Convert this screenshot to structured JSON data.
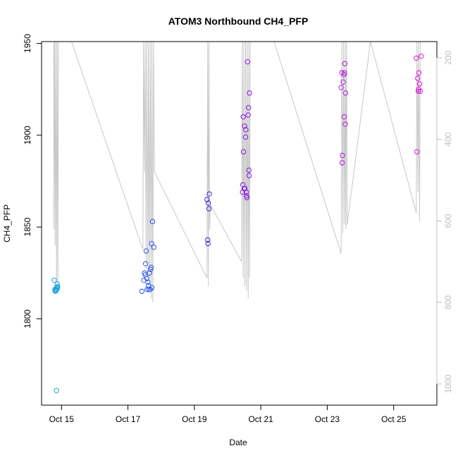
{
  "chart_data": {
    "type": "scatter",
    "title": "ATOM3 Northbound CH4_PFP",
    "xlabel": "Date",
    "ylabel": "CH4_PFP",
    "x_ticks": [
      {
        "day": 15,
        "label": "Oct 15"
      },
      {
        "day": 17,
        "label": "Oct 17"
      },
      {
        "day": 19,
        "label": "Oct 19"
      },
      {
        "day": 21,
        "label": "Oct 21"
      },
      {
        "day": 23,
        "label": "Oct 23"
      },
      {
        "day": 25,
        "label": "Oct 25"
      }
    ],
    "x_range_day": [
      14.4,
      26.3
    ],
    "y_ticks": [
      {
        "value": 1800,
        "label": "1800"
      },
      {
        "value": 1850,
        "label": "1850"
      },
      {
        "value": 1900,
        "label": "1900"
      },
      {
        "value": 1950,
        "label": "1950"
      }
    ],
    "ylim": [
      1753,
      1951
    ],
    "y2_ticks": [
      {
        "value": 200,
        "label": "200"
      },
      {
        "value": 400,
        "label": "400"
      },
      {
        "value": 600,
        "label": "600"
      },
      {
        "value": 800,
        "label": "800"
      },
      {
        "value": 1000,
        "label": "1000"
      }
    ],
    "y2lim": [
      1052,
      160
    ],
    "y2_inverted": true,
    "line_color": "#c8c8c8",
    "altitude_line": [
      [
        14.77,
        160
      ],
      [
        14.77,
        620
      ],
      [
        14.79,
        160
      ],
      [
        14.81,
        660
      ],
      [
        14.83,
        160
      ],
      [
        14.85,
        750
      ],
      [
        14.87,
        160
      ],
      [
        14.89,
        780
      ],
      [
        14.91,
        160
      ],
      [
        15.3,
        160
      ],
      [
        17.45,
        670
      ],
      [
        17.47,
        160
      ],
      [
        17.5,
        480
      ],
      [
        17.52,
        160
      ],
      [
        17.55,
        720
      ],
      [
        17.57,
        160
      ],
      [
        17.6,
        760
      ],
      [
        17.62,
        160
      ],
      [
        17.65,
        740
      ],
      [
        17.67,
        160
      ],
      [
        17.7,
        790
      ],
      [
        17.72,
        160
      ],
      [
        17.75,
        800
      ],
      [
        17.77,
        160
      ],
      [
        17.8,
        480
      ],
      [
        19.38,
        740
      ],
      [
        19.4,
        160
      ],
      [
        19.42,
        760
      ],
      [
        19.44,
        160
      ],
      [
        19.46,
        620
      ],
      [
        19.48,
        560
      ],
      [
        20.42,
        700
      ],
      [
        20.44,
        160
      ],
      [
        20.47,
        740
      ],
      [
        20.49,
        160
      ],
      [
        20.52,
        760
      ],
      [
        20.54,
        160
      ],
      [
        20.57,
        770
      ],
      [
        20.59,
        160
      ],
      [
        20.62,
        790
      ],
      [
        20.64,
        160
      ],
      [
        20.66,
        740
      ],
      [
        20.68,
        160
      ],
      [
        21.4,
        160
      ],
      [
        23.42,
        680
      ],
      [
        23.44,
        160
      ],
      [
        23.47,
        630
      ],
      [
        23.49,
        160
      ],
      [
        23.52,
        610
      ],
      [
        23.54,
        160
      ],
      [
        23.56,
        620
      ],
      [
        23.58,
        160
      ],
      [
        23.6,
        610
      ],
      [
        24.3,
        160
      ],
      [
        25.68,
        580
      ],
      [
        25.7,
        160
      ],
      [
        25.73,
        530
      ],
      [
        25.75,
        160
      ],
      [
        25.78,
        600
      ],
      [
        25.8,
        160
      ]
    ],
    "series": [
      {
        "color": "#1aa3e0",
        "points": [
          [
            14.78,
            1821
          ],
          [
            14.8,
            1816
          ],
          [
            14.81,
            1815
          ],
          [
            14.82,
            1815.5
          ],
          [
            14.84,
            1816
          ],
          [
            14.85,
            1817
          ],
          [
            14.86,
            1816
          ],
          [
            14.87,
            1819
          ],
          [
            14.88,
            1817
          ],
          [
            14.88,
            1817.5
          ],
          [
            14.85,
            1761
          ]
        ]
      },
      {
        "color": "#2b57e8",
        "points": [
          [
            17.42,
            1815
          ],
          [
            17.48,
            1821
          ],
          [
            17.5,
            1825
          ],
          [
            17.52,
            1824
          ],
          [
            17.53,
            1830
          ],
          [
            17.55,
            1837
          ],
          [
            17.57,
            1822
          ],
          [
            17.58,
            1816
          ],
          [
            17.6,
            1820
          ],
          [
            17.62,
            1818
          ],
          [
            17.63,
            1816
          ],
          [
            17.65,
            1825
          ],
          [
            17.67,
            1816
          ],
          [
            17.68,
            1827
          ],
          [
            17.7,
            1828
          ],
          [
            17.71,
            1841
          ],
          [
            17.72,
            1817
          ],
          [
            17.74,
            1853
          ],
          [
            17.78,
            1839
          ]
        ]
      },
      {
        "color": "#3d28e0",
        "points": [
          [
            19.38,
            1865
          ],
          [
            19.4,
            1843
          ],
          [
            19.41,
            1841
          ],
          [
            19.42,
            1863
          ],
          [
            19.44,
            1860
          ],
          [
            19.45,
            1868
          ]
        ]
      },
      {
        "color": "#8b18e8",
        "points": [
          [
            20.45,
            1869
          ],
          [
            20.46,
            1873
          ],
          [
            20.47,
            1910
          ],
          [
            20.48,
            1891
          ],
          [
            20.5,
            1871
          ],
          [
            20.51,
            1905
          ],
          [
            20.52,
            1871
          ],
          [
            20.54,
            1899
          ],
          [
            20.55,
            1903
          ],
          [
            20.56,
            1869
          ],
          [
            20.57,
            1867
          ],
          [
            20.58,
            1866
          ],
          [
            20.6,
            1940
          ],
          [
            20.62,
            1911
          ],
          [
            20.63,
            1915
          ],
          [
            20.64,
            1881
          ],
          [
            20.65,
            1878
          ],
          [
            20.66,
            1923
          ]
        ]
      },
      {
        "color": "#b01ce0",
        "points": [
          [
            23.42,
            1926
          ],
          [
            23.44,
            1934
          ],
          [
            23.45,
            1885
          ],
          [
            23.46,
            1889
          ],
          [
            23.48,
            1929
          ],
          [
            23.5,
            1933
          ],
          [
            23.51,
            1910
          ],
          [
            23.52,
            1934
          ],
          [
            23.53,
            1939
          ],
          [
            23.54,
            1906
          ],
          [
            23.55,
            1923
          ]
        ]
      },
      {
        "color": "#dc18d8",
        "points": [
          [
            25.68,
            1942
          ],
          [
            25.7,
            1891
          ],
          [
            25.72,
            1931
          ],
          [
            25.74,
            1924
          ],
          [
            25.75,
            1925
          ],
          [
            25.76,
            1934
          ],
          [
            25.78,
            1928
          ],
          [
            25.8,
            1924
          ],
          [
            25.83,
            1943
          ]
        ]
      }
    ]
  }
}
